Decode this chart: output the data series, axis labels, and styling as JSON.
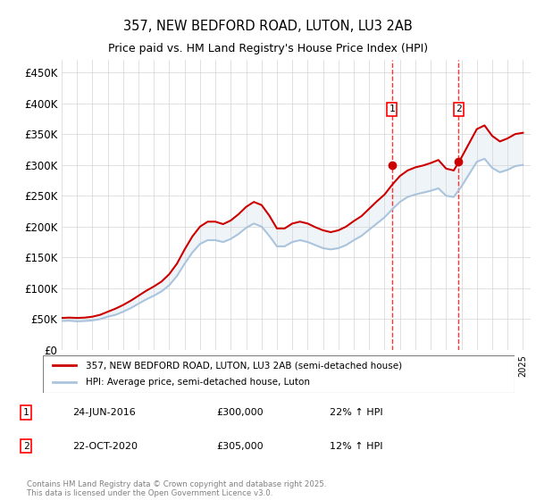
{
  "title_line1": "357, NEW BEDFORD ROAD, LUTON, LU3 2AB",
  "title_line2": "Price paid vs. HM Land Registry's House Price Index (HPI)",
  "ylabel_ticks": [
    "£0",
    "£50K",
    "£100K",
    "£150K",
    "£200K",
    "£250K",
    "£300K",
    "£350K",
    "£400K",
    "£450K"
  ],
  "ytick_values": [
    0,
    50000,
    100000,
    150000,
    200000,
    250000,
    300000,
    350000,
    400000,
    450000
  ],
  "ylim": [
    0,
    470000
  ],
  "xlim_start": 1995,
  "xlim_end": 2025.5,
  "hpi_color": "#aac4dd",
  "price_color": "#cc0000",
  "transaction1": {
    "date": 2016.48,
    "price": 300000,
    "label": "1"
  },
  "transaction2": {
    "date": 2020.81,
    "price": 305000,
    "label": "2"
  },
  "legend_line1": "357, NEW BEDFORD ROAD, LUTON, LU3 2AB (semi-detached house)",
  "legend_line2": "HPI: Average price, semi-detached house, Luton",
  "footnote": "Contains HM Land Registry data © Crown copyright and database right 2025.\nThis data is licensed under the Open Government Licence v3.0.",
  "table_rows": [
    {
      "num": "1",
      "date": "24-JUN-2016",
      "price": "£300,000",
      "change": "22% ↑ HPI"
    },
    {
      "num": "2",
      "date": "22-OCT-2020",
      "price": "£305,000",
      "change": "12% ↑ HPI"
    }
  ],
  "hpi_data": {
    "years": [
      1995,
      1995.5,
      1996,
      1996.5,
      1997,
      1997.5,
      1998,
      1998.5,
      1999,
      1999.5,
      2000,
      2000.5,
      2001,
      2001.5,
      2002,
      2002.5,
      2003,
      2003.5,
      2004,
      2004.5,
      2005,
      2005.5,
      2006,
      2006.5,
      2007,
      2007.5,
      2008,
      2008.5,
      2009,
      2009.5,
      2010,
      2010.5,
      2011,
      2011.5,
      2012,
      2012.5,
      2013,
      2013.5,
      2014,
      2014.5,
      2015,
      2015.5,
      2016,
      2016.5,
      2017,
      2017.5,
      2018,
      2018.5,
      2019,
      2019.5,
      2020,
      2020.5,
      2021,
      2021.5,
      2022,
      2022.5,
      2023,
      2023.5,
      2024,
      2024.5,
      2025
    ],
    "values": [
      47000,
      47500,
      46500,
      47000,
      48000,
      50000,
      54000,
      57000,
      62000,
      68000,
      75000,
      82000,
      88000,
      95000,
      105000,
      120000,
      140000,
      158000,
      172000,
      178000,
      178000,
      175000,
      180000,
      188000,
      198000,
      205000,
      200000,
      185000,
      168000,
      168000,
      175000,
      178000,
      175000,
      170000,
      165000,
      163000,
      165000,
      170000,
      178000,
      185000,
      195000,
      205000,
      215000,
      228000,
      240000,
      248000,
      252000,
      255000,
      258000,
      262000,
      250000,
      248000,
      265000,
      285000,
      305000,
      310000,
      295000,
      288000,
      292000,
      298000,
      300000
    ]
  },
  "price_data": {
    "years": [
      1995,
      1995.5,
      1996,
      1996.5,
      1997,
      1997.5,
      1998,
      1998.5,
      1999,
      1999.5,
      2000,
      2000.5,
      2001,
      2001.5,
      2002,
      2002.5,
      2003,
      2003.5,
      2004,
      2004.5,
      2005,
      2005.5,
      2006,
      2006.5,
      2007,
      2007.5,
      2008,
      2008.5,
      2009,
      2009.5,
      2010,
      2010.5,
      2011,
      2011.5,
      2012,
      2012.5,
      2013,
      2013.5,
      2014,
      2014.5,
      2015,
      2015.5,
      2016,
      2016.5,
      2017,
      2017.5,
      2018,
      2018.5,
      2019,
      2019.5,
      2020,
      2020.5,
      2021,
      2021.5,
      2022,
      2022.5,
      2023,
      2023.5,
      2024,
      2024.5,
      2025
    ],
    "values": [
      52000,
      52500,
      52000,
      52500,
      54000,
      57000,
      62000,
      67000,
      73000,
      80000,
      88000,
      96000,
      103000,
      111000,
      123000,
      140000,
      163000,
      184000,
      200000,
      208000,
      208000,
      204000,
      210000,
      220000,
      232000,
      240000,
      235000,
      218000,
      197000,
      197000,
      205000,
      208000,
      205000,
      199000,
      194000,
      191000,
      194000,
      200000,
      209000,
      217000,
      229000,
      241000,
      252000,
      268000,
      282000,
      291000,
      296000,
      299000,
      303000,
      308000,
      294000,
      291000,
      312000,
      335000,
      358000,
      364000,
      347000,
      338000,
      343000,
      350000,
      352000
    ]
  }
}
